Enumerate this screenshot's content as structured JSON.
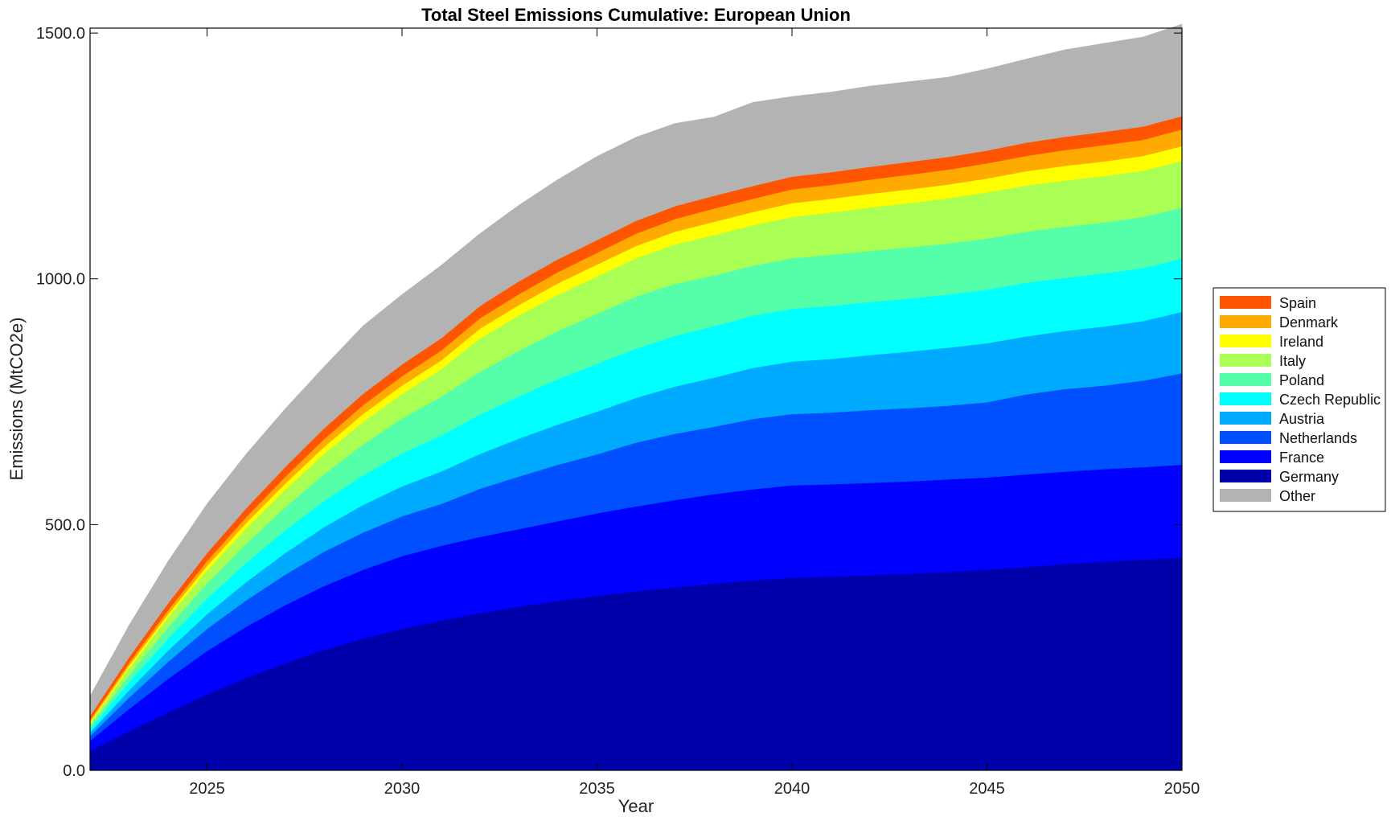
{
  "chart_data": {
    "type": "area",
    "title": "Total Steel Emissions Cumulative: European Union",
    "xlabel": "Year",
    "ylabel": "Emissions (MtCO2e)",
    "xlim": [
      2022,
      2050
    ],
    "ylim": [
      0,
      1510
    ],
    "xticks": [
      2025,
      2030,
      2035,
      2040,
      2045,
      2050
    ],
    "xtick_labels": [
      "2025",
      "2030",
      "2035",
      "2040",
      "2045",
      "2050"
    ],
    "yticks": [
      0,
      500,
      1000,
      1500
    ],
    "ytick_labels": [
      "0.0",
      "500.0",
      "1000.0",
      "1500.0"
    ],
    "stacked": true,
    "legend_position": "right",
    "x": [
      2022,
      2023,
      2024,
      2025,
      2026,
      2027,
      2028,
      2029,
      2030,
      2031,
      2032,
      2033,
      2034,
      2035,
      2036,
      2037,
      2038,
      2039,
      2040,
      2041,
      2042,
      2043,
      2044,
      2045,
      2046,
      2047,
      2048,
      2049,
      2050
    ],
    "series": [
      {
        "name": "Germany",
        "color": "#0000aa",
        "values": [
          40,
          80,
          118,
          155,
          188,
          218,
          245,
          268,
          288,
          305,
          320,
          333,
          345,
          355,
          365,
          372,
          380,
          387,
          392,
          394,
          397,
          400,
          404,
          408,
          414,
          420,
          425,
          429,
          433
        ]
      },
      {
        "name": "France",
        "color": "#0000ff",
        "values": [
          20,
          45,
          68,
          88,
          104,
          118,
          130,
          140,
          148,
          152,
          155,
          158,
          162,
          168,
          172,
          178,
          182,
          185,
          188,
          188,
          188,
          188,
          188,
          188,
          188,
          188,
          188,
          188,
          189
        ]
      },
      {
        "name": "Netherlands",
        "color": "#0050ff",
        "values": [
          10,
          23,
          35,
          45,
          54,
          62,
          70,
          76,
          81,
          85,
          98,
          107,
          115,
          120,
          130,
          135,
          137,
          143,
          145,
          146,
          148,
          149,
          150,
          153,
          163,
          168,
          170,
          176,
          186
        ]
      },
      {
        "name": "Austria",
        "color": "#00aaff",
        "values": [
          7,
          15,
          23,
          30,
          37,
          44,
          50,
          56,
          61,
          66,
          71,
          77,
          82,
          87,
          91,
          96,
          100,
          104,
          107,
          109,
          112,
          115,
          118,
          120,
          118,
          118,
          120,
          121,
          125
        ]
      },
      {
        "name": "Czech Republic",
        "color": "#00ffff",
        "values": [
          7,
          16,
          24,
          32,
          39,
          46,
          53,
          60,
          67,
          73,
          80,
          86,
          92,
          97,
          100,
          103,
          105,
          106,
          107,
          108,
          108,
          108,
          108,
          109,
          109,
          108,
          108,
          108,
          108
        ]
      },
      {
        "name": "Poland",
        "color": "#55ffaa",
        "values": [
          6,
          15,
          23,
          31,
          39,
          47,
          55,
          63,
          71,
          79,
          87,
          93,
          98,
          102,
          106,
          106,
          103,
          102,
          103,
          104,
          104,
          104,
          104,
          104,
          104,
          104,
          104,
          104,
          104
        ]
      },
      {
        "name": "Italy",
        "color": "#aaff55",
        "values": [
          6,
          14,
          20,
          26,
          31,
          36,
          41,
          46,
          50,
          56,
          68,
          72,
          74,
          76,
          78,
          80,
          82,
          82,
          84,
          86,
          88,
          90,
          92,
          94,
          94,
          94,
          94,
          94,
          95
        ]
      },
      {
        "name": "Ireland",
        "color": "#ffff00",
        "values": [
          3,
          5,
          7,
          9,
          11,
          12,
          14,
          16,
          17,
          18,
          20,
          21,
          23,
          24,
          25,
          26,
          27,
          27,
          28,
          28,
          28,
          28,
          28,
          28,
          29,
          30,
          30,
          30,
          30
        ]
      },
      {
        "name": "Denmark",
        "color": "#ffaa00",
        "values": [
          4,
          6,
          8,
          10,
          12,
          14,
          16,
          18,
          19,
          20,
          21,
          22,
          23,
          24,
          25,
          26,
          27,
          27,
          28,
          28,
          29,
          30,
          30,
          31,
          31,
          32,
          33,
          33,
          34
        ]
      },
      {
        "name": "Spain",
        "color": "#ff5500",
        "values": [
          8,
          11,
          14,
          16,
          18,
          20,
          22,
          23,
          24,
          25,
          25,
          26,
          26,
          26,
          26,
          26,
          26,
          26,
          26,
          26,
          26,
          26,
          26,
          26,
          27,
          27,
          27,
          27,
          27
        ]
      },
      {
        "name": "Other",
        "color": "#b3b3b3",
        "values": [
          40,
          65,
          85,
          100,
          110,
          118,
          125,
          138,
          142,
          148,
          147,
          155,
          162,
          170,
          170,
          168,
          160,
          170,
          163,
          163,
          164,
          163,
          162,
          166,
          170,
          177,
          180,
          182,
          187
        ]
      }
    ],
    "legend_order": [
      "Spain",
      "Denmark",
      "Ireland",
      "Italy",
      "Poland",
      "Czech Republic",
      "Austria",
      "Netherlands",
      "France",
      "Germany",
      "Other"
    ]
  }
}
